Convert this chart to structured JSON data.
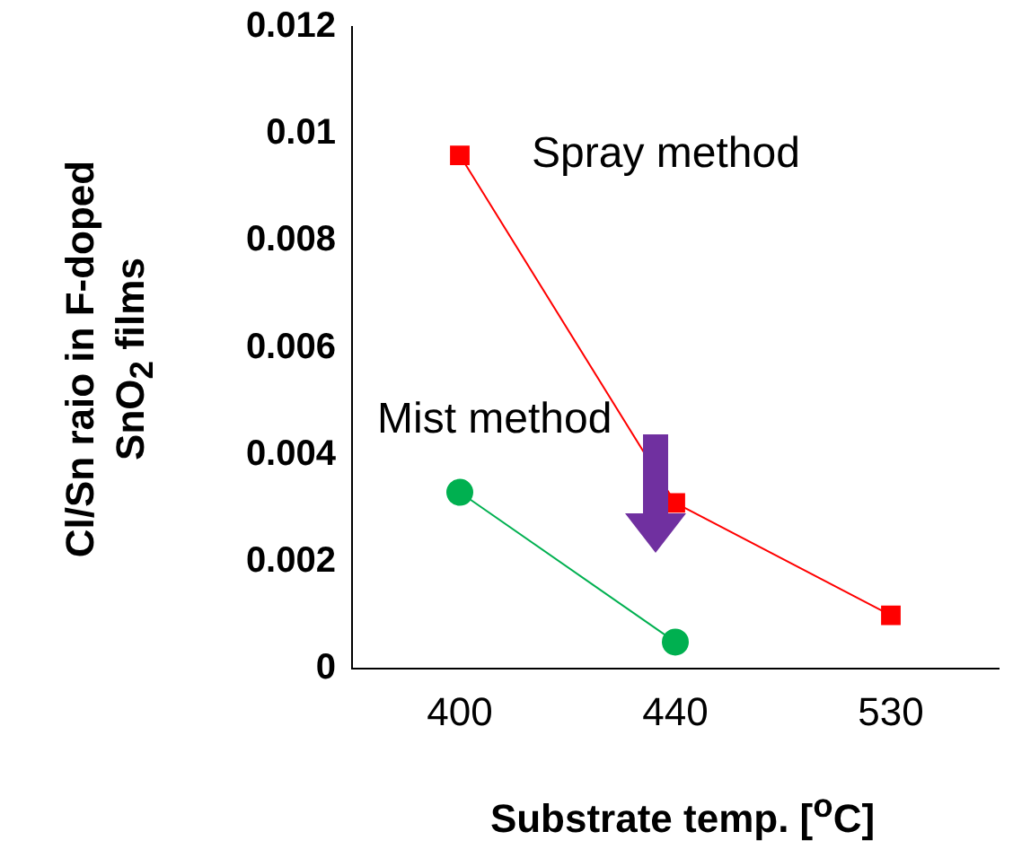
{
  "chart_data": {
    "type": "line",
    "xlabel": "Substrate temp. [$^{o}$C]",
    "ylabel": "Cl/Sn raio in F-doped SnO$_{2}$ films",
    "categories": [
      "400",
      "440",
      "530"
    ],
    "series": [
      {
        "name": "Spray method",
        "color": "#ff0000",
        "marker": "square",
        "values": [
          0.0096,
          0.0031,
          0.001
        ]
      },
      {
        "name": "Mist method",
        "color": "#00b050",
        "marker": "circle",
        "values": [
          0.0033,
          0.0005,
          null
        ]
      }
    ],
    "ylim": [
      0,
      0.012
    ],
    "yticks": [
      0,
      0.002,
      0.004,
      0.006,
      0.008,
      0.01,
      0.012
    ],
    "grid": false,
    "legend": false
  }
}
